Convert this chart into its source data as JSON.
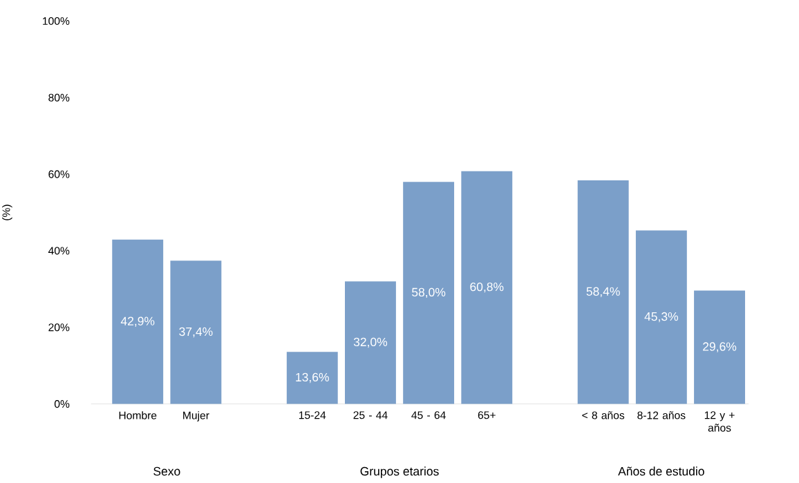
{
  "chart_data": {
    "type": "bar",
    "ylabel": "(%)",
    "categories": [
      "Hombre",
      "Mujer",
      null,
      "15-24",
      "25 - 44",
      "45 - 64",
      "65+",
      null,
      "< 8 años",
      "8-12 años",
      "12 y + años"
    ],
    "values": [
      42.9,
      37.4,
      null,
      13.6,
      32.0,
      58.0,
      60.8,
      null,
      58.4,
      45.3,
      29.6
    ],
    "value_labels": [
      "42,9%",
      "37,4%",
      null,
      "13,6%",
      "32,0%",
      "58,0%",
      "60,8%",
      null,
      "58,4%",
      "45,3%",
      "29,6%"
    ],
    "color": "#7b9fc9",
    "ylim": [
      0,
      100
    ],
    "yticks": [
      {
        "value": 0,
        "label": "0%"
      },
      {
        "value": 20,
        "label": "20%"
      },
      {
        "value": 40,
        "label": "40%"
      },
      {
        "value": 60,
        "label": "60%"
      },
      {
        "value": 80,
        "label": "80%"
      },
      {
        "value": 100,
        "label": "100%"
      }
    ],
    "annotations": [
      "Sexo",
      "Grupos etarios",
      "Años de estudio"
    ]
  }
}
